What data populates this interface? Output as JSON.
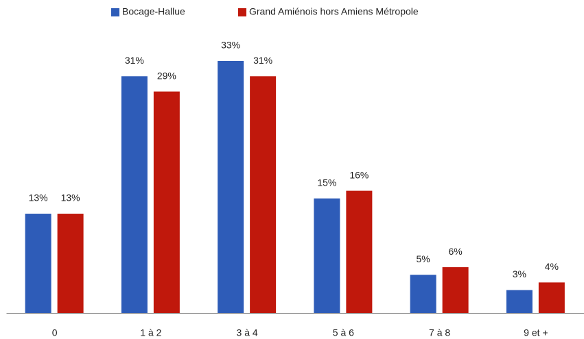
{
  "chart_data": {
    "type": "bar",
    "categories": [
      "0",
      "1 à 2",
      "3 à 4",
      "5 à 6",
      "7 à 8",
      "9 et +"
    ],
    "series": [
      {
        "name": "Bocage-Hallue",
        "color": "#2e5cb8",
        "values": [
          13,
          31,
          33,
          15,
          5,
          3
        ],
        "value_labels": [
          "13%",
          "31%",
          "33%",
          "15%",
          "5%",
          "3%"
        ]
      },
      {
        "name": "Grand Amiénois hors Amiens Métropole",
        "color": "#c0180c",
        "values": [
          13,
          29,
          31,
          16,
          6,
          4
        ],
        "value_labels": [
          "13%",
          "29%",
          "31%",
          "16%",
          "6%",
          "4%"
        ]
      }
    ],
    "legend": "top"
  }
}
